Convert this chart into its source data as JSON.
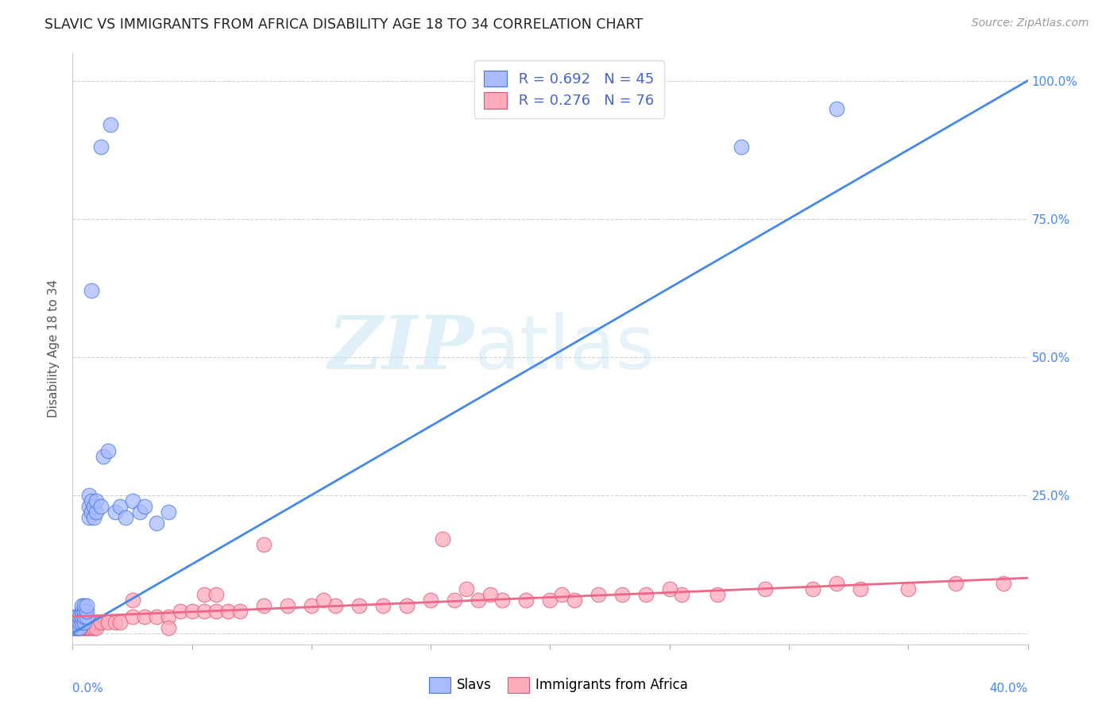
{
  "title": "SLAVIC VS IMMIGRANTS FROM AFRICA DISABILITY AGE 18 TO 34 CORRELATION CHART",
  "source": "Source: ZipAtlas.com",
  "ylabel": "Disability Age 18 to 34",
  "watermark_zip": "ZIP",
  "watermark_atlas": "atlas",
  "legend_slavs_r": "R = 0.692",
  "legend_slavs_n": "N = 45",
  "legend_africa_r": "R = 0.276",
  "legend_africa_n": "N = 76",
  "slavs_face_color": "#aabbff",
  "slavs_edge_color": "#4477dd",
  "africa_face_color": "#ffaabb",
  "africa_edge_color": "#dd5577",
  "slavs_line_color": "#4488ee",
  "africa_line_color": "#ee6688",
  "background_color": "#ffffff",
  "xlim": [
    0.0,
    0.4
  ],
  "ylim": [
    -0.02,
    1.05
  ],
  "slavs_x": [
    0.0,
    0.001,
    0.001,
    0.002,
    0.002,
    0.002,
    0.003,
    0.003,
    0.003,
    0.004,
    0.004,
    0.004,
    0.004,
    0.005,
    0.005,
    0.005,
    0.005,
    0.006,
    0.006,
    0.006,
    0.007,
    0.007,
    0.007,
    0.008,
    0.008,
    0.009,
    0.009,
    0.01,
    0.01,
    0.012,
    0.013,
    0.015,
    0.018,
    0.02,
    0.022,
    0.025,
    0.028,
    0.03,
    0.035,
    0.04,
    0.012,
    0.016,
    0.008,
    0.28,
    0.32
  ],
  "slavs_y": [
    0.01,
    0.02,
    0.03,
    0.01,
    0.02,
    0.03,
    0.01,
    0.02,
    0.03,
    0.02,
    0.03,
    0.04,
    0.05,
    0.02,
    0.03,
    0.04,
    0.05,
    0.03,
    0.04,
    0.05,
    0.21,
    0.23,
    0.25,
    0.22,
    0.24,
    0.21,
    0.23,
    0.22,
    0.24,
    0.23,
    0.32,
    0.33,
    0.22,
    0.23,
    0.21,
    0.24,
    0.22,
    0.23,
    0.2,
    0.22,
    0.88,
    0.92,
    0.62,
    0.88,
    0.95
  ],
  "africa_x": [
    0.0,
    0.001,
    0.001,
    0.002,
    0.002,
    0.002,
    0.003,
    0.003,
    0.003,
    0.004,
    0.004,
    0.005,
    0.005,
    0.005,
    0.006,
    0.006,
    0.006,
    0.007,
    0.007,
    0.008,
    0.008,
    0.009,
    0.009,
    0.01,
    0.01,
    0.012,
    0.015,
    0.018,
    0.02,
    0.025,
    0.03,
    0.035,
    0.04,
    0.045,
    0.05,
    0.055,
    0.06,
    0.065,
    0.07,
    0.08,
    0.09,
    0.1,
    0.11,
    0.12,
    0.13,
    0.14,
    0.15,
    0.16,
    0.17,
    0.18,
    0.19,
    0.2,
    0.21,
    0.22,
    0.23,
    0.24,
    0.255,
    0.27,
    0.29,
    0.31,
    0.33,
    0.35,
    0.37,
    0.39,
    0.055,
    0.105,
    0.155,
    0.205,
    0.08,
    0.175,
    0.25,
    0.32,
    0.165,
    0.04,
    0.025,
    0.06
  ],
  "africa_y": [
    0.01,
    0.01,
    0.02,
    0.01,
    0.02,
    0.01,
    0.02,
    0.01,
    0.02,
    0.01,
    0.02,
    0.01,
    0.02,
    0.01,
    0.01,
    0.02,
    0.01,
    0.02,
    0.01,
    0.02,
    0.01,
    0.02,
    0.01,
    0.02,
    0.01,
    0.02,
    0.02,
    0.02,
    0.02,
    0.03,
    0.03,
    0.03,
    0.03,
    0.04,
    0.04,
    0.04,
    0.04,
    0.04,
    0.04,
    0.05,
    0.05,
    0.05,
    0.05,
    0.05,
    0.05,
    0.05,
    0.06,
    0.06,
    0.06,
    0.06,
    0.06,
    0.06,
    0.06,
    0.07,
    0.07,
    0.07,
    0.07,
    0.07,
    0.08,
    0.08,
    0.08,
    0.08,
    0.09,
    0.09,
    0.07,
    0.06,
    0.17,
    0.07,
    0.16,
    0.07,
    0.08,
    0.09,
    0.08,
    0.01,
    0.06,
    0.07
  ],
  "slavs_line_x0": 0.0,
  "slavs_line_y0": 0.0,
  "slavs_line_x1": 0.4,
  "slavs_line_y1": 1.0,
  "africa_line_x0": 0.0,
  "africa_line_y0": 0.03,
  "africa_line_x1": 0.4,
  "africa_line_y1": 0.1
}
